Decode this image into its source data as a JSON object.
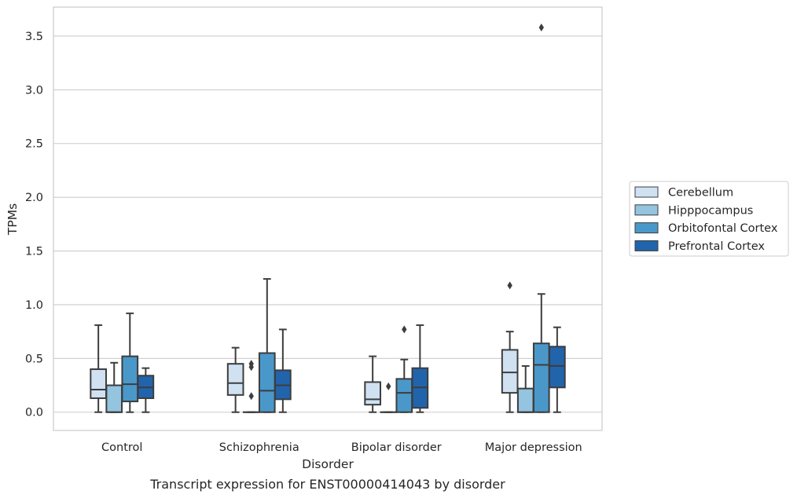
{
  "chart_data": {
    "type": "box",
    "xlabel": "Disorder",
    "ylabel": "TPMs",
    "caption": "Transcript expression for ENST00000414043 by disorder",
    "ylim": [
      -0.17,
      3.77
    ],
    "yticks": [
      "0.0",
      "0.5",
      "1.0",
      "1.5",
      "2.0",
      "2.5",
      "3.0",
      "3.5"
    ],
    "grid": "horizontal",
    "legend_position": "right",
    "categories": [
      "Control",
      "Schizophrenia",
      "Bipolar disorder",
      "Major depression"
    ],
    "series": [
      {
        "name": "Cerebellum",
        "color": "#d0e1f2",
        "boxes": [
          {
            "whislo": 0.0,
            "q1": 0.13,
            "med": 0.21,
            "q3": 0.4,
            "whishi": 0.81,
            "fliers": []
          },
          {
            "whislo": 0.0,
            "q1": 0.16,
            "med": 0.27,
            "q3": 0.45,
            "whishi": 0.6,
            "fliers": []
          },
          {
            "whislo": 0.0,
            "q1": 0.07,
            "med": 0.12,
            "q3": 0.28,
            "whishi": 0.52,
            "fliers": []
          },
          {
            "whislo": 0.0,
            "q1": 0.18,
            "med": 0.37,
            "q3": 0.58,
            "whishi": 0.75,
            "fliers": [
              1.18
            ]
          }
        ]
      },
      {
        "name": "Hipppocampus",
        "color": "#94c4df",
        "boxes": [
          {
            "whislo": 0.0,
            "q1": 0.0,
            "med": 0.0,
            "q3": 0.25,
            "whishi": 0.46,
            "fliers": []
          },
          {
            "whislo": 0.0,
            "q1": 0.0,
            "med": 0.0,
            "q3": 0.0,
            "whishi": 0.0,
            "fliers": [
              0.15,
              0.42,
              0.45
            ]
          },
          {
            "whislo": 0.0,
            "q1": 0.0,
            "med": 0.0,
            "q3": 0.0,
            "whishi": 0.0,
            "fliers": [
              0.24
            ]
          },
          {
            "whislo": 0.0,
            "q1": 0.0,
            "med": 0.0,
            "q3": 0.22,
            "whishi": 0.43,
            "fliers": []
          }
        ]
      },
      {
        "name": "Orbitofontal Cortex",
        "color": "#4a98c9",
        "boxes": [
          {
            "whislo": 0.0,
            "q1": 0.1,
            "med": 0.26,
            "q3": 0.52,
            "whishi": 0.92,
            "fliers": []
          },
          {
            "whislo": 0.0,
            "q1": 0.0,
            "med": 0.2,
            "q3": 0.55,
            "whishi": 1.24,
            "fliers": []
          },
          {
            "whislo": 0.0,
            "q1": 0.0,
            "med": 0.18,
            "q3": 0.31,
            "whishi": 0.49,
            "fliers": [
              0.77
            ]
          },
          {
            "whislo": 0.0,
            "q1": 0.0,
            "med": 0.44,
            "q3": 0.64,
            "whishi": 1.1,
            "fliers": [
              3.58
            ]
          }
        ]
      },
      {
        "name": "Prefrontal Cortex",
        "color": "#2164ab",
        "boxes": [
          {
            "whislo": 0.0,
            "q1": 0.13,
            "med": 0.23,
            "q3": 0.34,
            "whishi": 0.41,
            "fliers": []
          },
          {
            "whislo": 0.0,
            "q1": 0.12,
            "med": 0.25,
            "q3": 0.39,
            "whishi": 0.77,
            "fliers": []
          },
          {
            "whislo": 0.0,
            "q1": 0.04,
            "med": 0.23,
            "q3": 0.41,
            "whishi": 0.81,
            "fliers": []
          },
          {
            "whislo": 0.0,
            "q1": 0.23,
            "med": 0.43,
            "q3": 0.61,
            "whishi": 0.79,
            "fliers": []
          }
        ]
      }
    ]
  }
}
